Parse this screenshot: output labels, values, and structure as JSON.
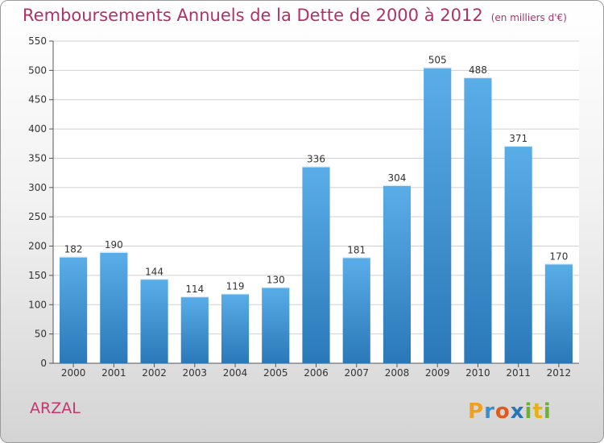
{
  "header": {
    "title": "Remboursements Annuels de la Dette de 2000 à 2012",
    "subtitle": "(en milliers d'€)"
  },
  "footer": {
    "commune": "ARZAL",
    "logo_text": "Proxiti"
  },
  "colors": {
    "title": "#b0306a",
    "bar_top": "#5aaee8",
    "bar_bottom": "#2a78b8",
    "grid": "#d0d0d0"
  },
  "chart_data": {
    "type": "bar",
    "title": "Remboursements Annuels de la Dette de 2000 à 2012",
    "subtitle": "(en milliers d'€)",
    "categories": [
      "2000",
      "2001",
      "2002",
      "2003",
      "2004",
      "2005",
      "2006",
      "2007",
      "2008",
      "2009",
      "2010",
      "2011",
      "2012"
    ],
    "values": [
      182,
      190,
      144,
      114,
      119,
      130,
      336,
      181,
      304,
      505,
      488,
      371,
      170
    ],
    "ylim": [
      0,
      550
    ],
    "yticks": [
      0,
      50,
      100,
      150,
      200,
      250,
      300,
      350,
      400,
      450,
      500,
      550
    ],
    "grid": true,
    "xlabel": "",
    "ylabel": ""
  }
}
